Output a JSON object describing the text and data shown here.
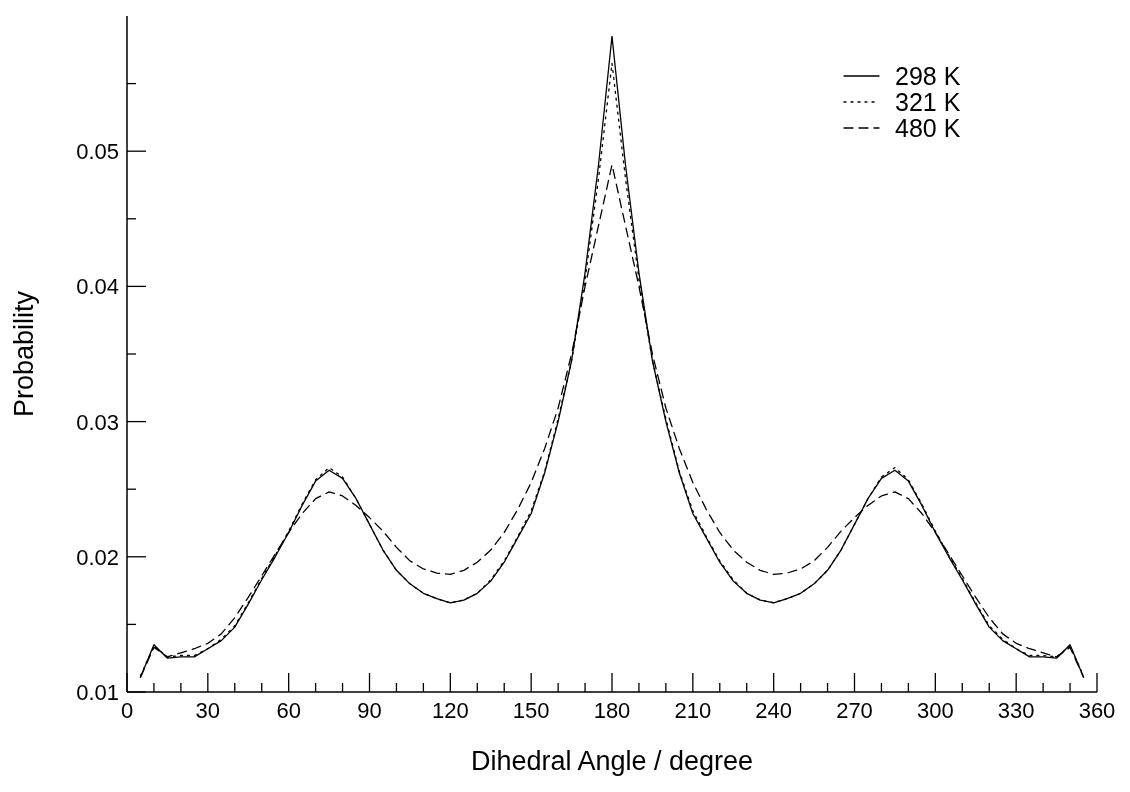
{
  "chart_data": {
    "type": "line",
    "xlabel": "Dihedral Angle / degree",
    "ylabel": "Probability",
    "x": [
      5,
      10,
      15,
      20,
      25,
      30,
      35,
      40,
      45,
      50,
      55,
      60,
      65,
      70,
      75,
      80,
      85,
      90,
      95,
      100,
      105,
      110,
      115,
      120,
      125,
      130,
      135,
      140,
      145,
      150,
      155,
      160,
      165,
      170,
      175,
      180,
      185,
      190,
      195,
      200,
      205,
      210,
      215,
      220,
      225,
      230,
      235,
      240,
      245,
      250,
      255,
      260,
      265,
      270,
      275,
      280,
      285,
      290,
      295,
      300,
      305,
      310,
      315,
      320,
      325,
      330,
      335,
      340,
      345,
      350,
      355
    ],
    "series": [
      {
        "name": "298 K",
        "color": "#000000",
        "line_style": "solid",
        "values": [
          0.0111,
          0.0135,
          0.0125,
          0.0126,
          0.0126,
          0.0132,
          0.0138,
          0.0148,
          0.0165,
          0.0183,
          0.02,
          0.0218,
          0.0238,
          0.0256,
          0.0264,
          0.0258,
          0.0243,
          0.0224,
          0.0205,
          0.019,
          0.018,
          0.0173,
          0.0169,
          0.0166,
          0.0168,
          0.0173,
          0.0182,
          0.0196,
          0.0214,
          0.0232,
          0.0262,
          0.03,
          0.0345,
          0.041,
          0.049,
          0.0585,
          0.049,
          0.041,
          0.0345,
          0.03,
          0.0262,
          0.0232,
          0.0214,
          0.0196,
          0.0182,
          0.0173,
          0.0168,
          0.0166,
          0.0169,
          0.0173,
          0.018,
          0.019,
          0.0205,
          0.0224,
          0.0243,
          0.0258,
          0.0264,
          0.0256,
          0.0238,
          0.0218,
          0.02,
          0.0183,
          0.0165,
          0.0148,
          0.0138,
          0.0132,
          0.0126,
          0.0126,
          0.0125,
          0.0135,
          0.0111
        ]
      },
      {
        "name": "321 K",
        "color": "#000000",
        "line_style": "dotted",
        "values": [
          0.0112,
          0.0134,
          0.0126,
          0.0127,
          0.0127,
          0.0132,
          0.0139,
          0.0149,
          0.0166,
          0.0184,
          0.0201,
          0.0219,
          0.0239,
          0.0257,
          0.0266,
          0.0259,
          0.0243,
          0.0224,
          0.0205,
          0.019,
          0.018,
          0.0173,
          0.0169,
          0.0166,
          0.0168,
          0.0173,
          0.0183,
          0.0197,
          0.0215,
          0.0234,
          0.0263,
          0.0302,
          0.0345,
          0.0405,
          0.048,
          0.0565,
          0.048,
          0.0405,
          0.0345,
          0.0302,
          0.0263,
          0.0234,
          0.0215,
          0.0197,
          0.0183,
          0.0173,
          0.0168,
          0.0166,
          0.0169,
          0.0173,
          0.018,
          0.019,
          0.0205,
          0.0224,
          0.0243,
          0.0259,
          0.0266,
          0.0257,
          0.0239,
          0.0219,
          0.0201,
          0.0184,
          0.0166,
          0.0149,
          0.0139,
          0.0132,
          0.0127,
          0.0127,
          0.0126,
          0.0134,
          0.0112
        ]
      },
      {
        "name": "480 K",
        "color": "#000000",
        "line_style": "dashed",
        "values": [
          0.0111,
          0.0133,
          0.0126,
          0.0129,
          0.0132,
          0.0136,
          0.0143,
          0.0155,
          0.017,
          0.0186,
          0.0202,
          0.0218,
          0.0232,
          0.0243,
          0.0248,
          0.0245,
          0.0238,
          0.0229,
          0.0219,
          0.0207,
          0.0197,
          0.0191,
          0.0188,
          0.0187,
          0.019,
          0.0196,
          0.0205,
          0.0218,
          0.0235,
          0.0255,
          0.028,
          0.031,
          0.035,
          0.04,
          0.0445,
          0.049,
          0.0445,
          0.04,
          0.035,
          0.031,
          0.028,
          0.0255,
          0.0235,
          0.0218,
          0.0205,
          0.0196,
          0.019,
          0.0187,
          0.0188,
          0.0191,
          0.0197,
          0.0207,
          0.0219,
          0.0229,
          0.0238,
          0.0245,
          0.0248,
          0.0243,
          0.0232,
          0.0218,
          0.0202,
          0.0186,
          0.017,
          0.0155,
          0.0143,
          0.0136,
          0.0132,
          0.0129,
          0.0126,
          0.0133,
          0.0111
        ]
      }
    ],
    "xlim": [
      0,
      360
    ],
    "xticks": [
      0,
      {
        "value": 10,
        "label": null
      },
      {
        "value": 20,
        "label": null
      },
      30,
      {
        "value": 40,
        "label": null
      },
      {
        "value": 50,
        "label": null
      },
      60,
      {
        "value": 70,
        "label": null
      },
      {
        "value": 80,
        "label": null
      },
      90,
      {
        "value": 100,
        "label": null
      },
      {
        "value": 110,
        "label": null
      },
      120,
      {
        "value": 130,
        "label": null
      },
      {
        "value": 140,
        "label": null
      },
      150,
      {
        "value": 160,
        "label": null
      },
      {
        "value": 170,
        "label": null
      },
      180,
      {
        "value": 190,
        "label": null
      },
      {
        "value": 200,
        "label": null
      },
      210,
      {
        "value": 220,
        "label": null
      },
      {
        "value": 230,
        "label": null
      },
      240,
      {
        "value": 250,
        "label": null
      },
      {
        "value": 260,
        "label": null
      },
      270,
      {
        "value": 280,
        "label": null
      },
      {
        "value": 290,
        "label": null
      },
      300,
      {
        "value": 310,
        "label": null
      },
      {
        "value": 320,
        "label": null
      },
      330,
      {
        "value": 340,
        "label": null
      },
      {
        "value": 350,
        "label": null
      },
      360
    ],
    "ylim": [
      0.01,
      0.06
    ],
    "yticks": [
      {
        "value": 0.01,
        "label": "0.01"
      },
      {
        "value": 0.015,
        "label": null
      },
      {
        "value": 0.02,
        "label": "0.02"
      },
      {
        "value": 0.025,
        "label": null
      },
      {
        "value": 0.03,
        "label": "0.03"
      },
      {
        "value": 0.035,
        "label": null
      },
      {
        "value": 0.04,
        "label": "0.04"
      },
      {
        "value": 0.045,
        "label": null
      },
      {
        "value": 0.05,
        "label": "0.05"
      },
      {
        "value": 0.055,
        "label": null
      }
    ],
    "grid": false,
    "legend": "top right"
  }
}
